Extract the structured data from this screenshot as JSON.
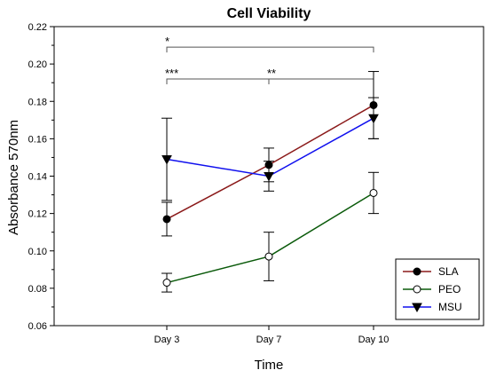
{
  "chart_data": {
    "type": "line",
    "title": "Cell Viability",
    "xlabel": "Time",
    "ylabel": "Absorbance 570nm",
    "categories": [
      "Day 3",
      "Day 7",
      "Day 10"
    ],
    "ylim": [
      0.06,
      0.22
    ],
    "yticks": [
      "0.06",
      "0.08",
      "0.10",
      "0.12",
      "0.14",
      "0.16",
      "0.18",
      "0.20",
      "0.22"
    ],
    "legend_position": "bottom-right",
    "series": [
      {
        "name": "SLA",
        "values": [
          0.117,
          0.146,
          0.178
        ],
        "error": [
          0.009,
          0.009,
          0.018
        ],
        "color": "#8b1a1a",
        "marker": "filled-circle"
      },
      {
        "name": "PEO",
        "values": [
          0.083,
          0.097,
          0.131
        ],
        "error": [
          0.005,
          0.013,
          0.011
        ],
        "color": "#0a5a0a",
        "marker": "open-circle"
      },
      {
        "name": "MSU",
        "values": [
          0.149,
          0.14,
          0.171
        ],
        "error": [
          0.022,
          0.008,
          0.011
        ],
        "color": "#1010ee",
        "marker": "filled-triangle-down"
      }
    ],
    "significance": [
      {
        "label": "*",
        "from": "Day 3",
        "to": "Day 10",
        "y": 0.209
      },
      {
        "label": "***",
        "from": "Day 3",
        "to": "Day 10",
        "y": 0.192
      },
      {
        "label": "**",
        "from": "Day 7",
        "to": "Day 10",
        "y": 0.192
      }
    ]
  }
}
